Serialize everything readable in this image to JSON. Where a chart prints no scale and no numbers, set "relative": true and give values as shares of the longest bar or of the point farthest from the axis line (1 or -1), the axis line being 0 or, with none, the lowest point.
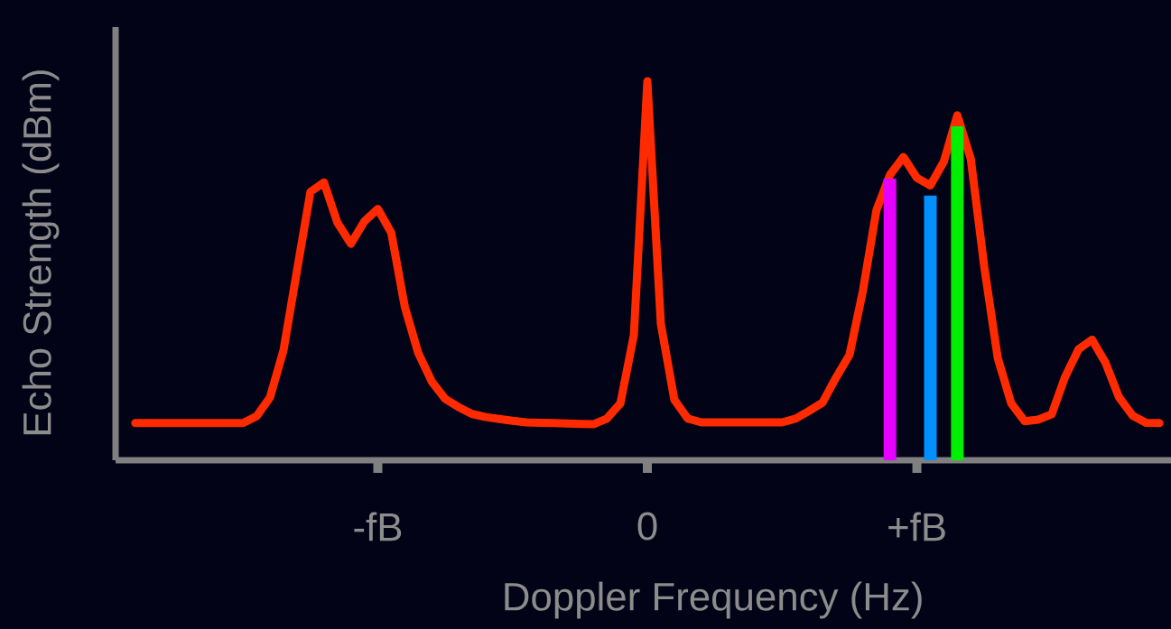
{
  "chart_data": {
    "type": "line",
    "relative": true,
    "xlabel": "Doppler Frequency (Hz)",
    "ylabel": "Echo Strength (dBm)",
    "categories": [
      null,
      null,
      null,
      null,
      null,
      null,
      null,
      null,
      null,
      null,
      null,
      null,
      null,
      null,
      null,
      null,
      null,
      null,
      "-fB",
      null,
      null,
      null,
      null,
      null,
      null,
      null,
      null,
      null,
      null,
      null,
      null,
      null,
      null,
      null,
      null,
      null,
      null,
      null,
      "0",
      null,
      null,
      null,
      null,
      null,
      null,
      null,
      null,
      null,
      null,
      null,
      null,
      null,
      null,
      null,
      null,
      null,
      null,
      null,
      "+fB",
      null,
      null,
      null,
      null,
      null,
      null,
      null,
      null,
      null,
      null,
      null,
      null,
      null,
      null,
      null,
      null,
      null,
      null
    ],
    "series": [
      {
        "type": "bar",
        "values": [
          null,
          null,
          null,
          null,
          null,
          null,
          null,
          null,
          null,
          null,
          null,
          null,
          null,
          null,
          null,
          null,
          null,
          null,
          null,
          null,
          null,
          null,
          null,
          null,
          null,
          null,
          null,
          null,
          null,
          null,
          null,
          null,
          null,
          null,
          null,
          null,
          null,
          null,
          null,
          null,
          null,
          null,
          null,
          null,
          null,
          null,
          null,
          null,
          null,
          null,
          null,
          null,
          null,
          null,
          null,
          null,
          0.743,
          null,
          null,
          0.698,
          null,
          0.881,
          null,
          null,
          null,
          null,
          null,
          null,
          null,
          null,
          null,
          null,
          null,
          null,
          null,
          null,
          null
        ],
        "colors": [
          null,
          null,
          null,
          null,
          null,
          null,
          null,
          null,
          null,
          null,
          null,
          null,
          null,
          null,
          null,
          null,
          null,
          null,
          null,
          null,
          null,
          null,
          null,
          null,
          null,
          null,
          null,
          null,
          null,
          null,
          null,
          null,
          null,
          null,
          null,
          null,
          null,
          null,
          null,
          null,
          null,
          null,
          null,
          null,
          null,
          null,
          null,
          null,
          null,
          null,
          null,
          null,
          null,
          null,
          null,
          null,
          "#e600ff",
          null,
          null,
          "#0090ff",
          null,
          "#00ee00",
          null,
          null,
          null,
          null,
          null,
          null,
          null,
          null,
          null,
          null,
          null,
          null,
          null,
          null,
          null
        ]
      },
      {
        "color": "#ff2a00",
        "values": [
          0.098,
          0.098,
          0.098,
          0.098,
          0.098,
          0.098,
          0.098,
          0.098,
          0.098,
          0.116,
          0.166,
          0.29,
          0.5,
          0.708,
          0.733,
          0.627,
          0.571,
          0.63,
          0.663,
          0.6,
          0.405,
          0.283,
          0.208,
          0.162,
          0.14,
          0.122,
          0.114,
          0.109,
          0.104,
          0.1,
          0.099,
          0.098,
          0.097,
          0.096,
          0.095,
          0.11,
          0.15,
          0.33,
          1,
          0.36,
          0.16,
          0.11,
          0.1,
          0.1,
          0.1,
          0.1,
          0.1,
          0.1,
          0.1,
          0.11,
          0.13,
          0.152,
          0.218,
          0.278,
          0.448,
          0.66,
          0.753,
          0.8,
          0.745,
          0.725,
          0.788,
          0.91,
          0.795,
          0.51,
          0.27,
          0.15,
          0.103,
          0.107,
          0.121,
          0.22,
          0.293,
          0.318,
          0.257,
          0.166,
          0.118,
          0.099,
          0.098
        ]
      }
    ]
  }
}
